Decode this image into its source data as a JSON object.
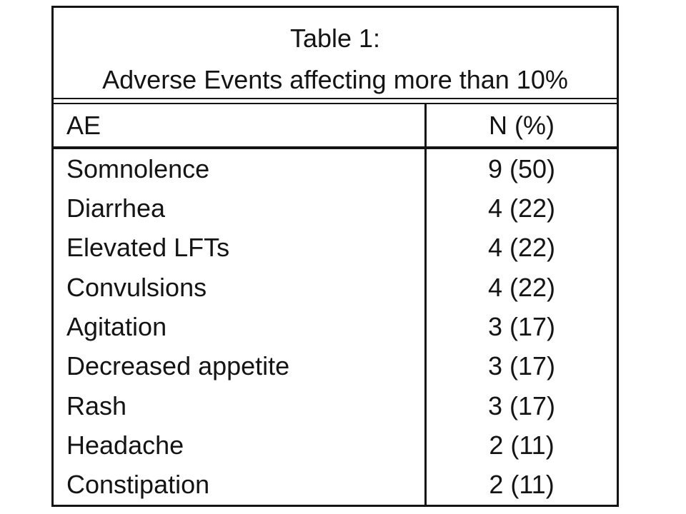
{
  "page": {
    "background": "#ffffff"
  },
  "table": {
    "title": {
      "line1": "Table 1:",
      "line2": "Adverse Events affecting more than 10%"
    },
    "columns": [
      {
        "label": "AE"
      },
      {
        "label": "N (%)"
      }
    ],
    "rows": [
      {
        "ae": "Somnolence",
        "n_pct": "9 (50)"
      },
      {
        "ae": "Diarrhea",
        "n_pct": "4 (22)"
      },
      {
        "ae": "Elevated LFTs",
        "n_pct": "4 (22)"
      },
      {
        "ae": "Convulsions",
        "n_pct": "4 (22)"
      },
      {
        "ae": "Agitation",
        "n_pct": "3 (17)"
      },
      {
        "ae": "Decreased appetite",
        "n_pct": "3 (17)"
      },
      {
        "ae": "Rash",
        "n_pct": "3 (17)"
      },
      {
        "ae": "Headache",
        "n_pct": "2 (11)"
      },
      {
        "ae": "Constipation",
        "n_pct": "2 (11)"
      }
    ],
    "colors": {
      "border": "#141414",
      "text": "#141414",
      "background": "#ffffff"
    }
  }
}
